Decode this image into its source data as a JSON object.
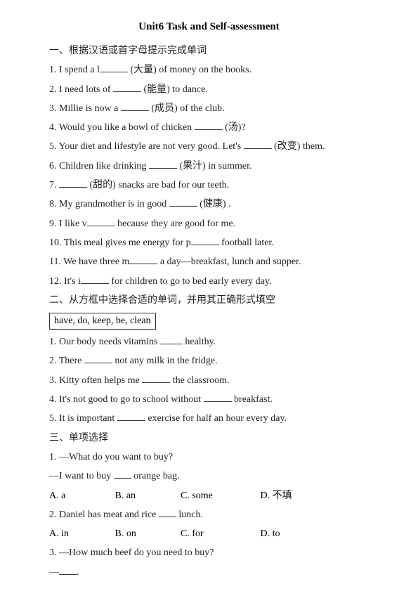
{
  "title": "Unit6 Task and Self-assessment",
  "section1_heading": "一、根据汉语或首字母提示完成单词",
  "s1": {
    "q1a": "1. I spend a l",
    "q1b": " (大量) of money on the books.",
    "q2a": "2. I need lots of ",
    "q2b": " (能量) to dance.",
    "q3a": "3. Millie is now a ",
    "q3b": " (成员) of the club.",
    "q4a": "4. Would you like a bowl of chicken ",
    "q4b": " (汤)?",
    "q5a": "5. Your diet and lifestyle are not very good. Let's ",
    "q5b": " (改变) them.",
    "q6a": "6. Children like drinking ",
    "q6b": " (果汁) in summer.",
    "q7a": "7. ",
    "q7b": " (甜的) snacks are bad for our teeth.",
    "q8a": "8. My grandmother is in good ",
    "q8b": " (健康) .",
    "q9a": "9. I like v",
    "q9b": " because they are good for me.",
    "q10a": "10. This meal gives me energy for p",
    "q10b": " football later.",
    "q11a": "11. We have three m",
    "q11b": " a day—breakfast, lunch and supper.",
    "q12a": "12. It's i",
    "q12b": " for children to go to bed early every day."
  },
  "section2_heading": "二、从方框中选择合适的单词，并用其正确形式填空",
  "wordbox": "have, do, keep, be, clean",
  "s2": {
    "q1a": "1. Our body needs vitamins ",
    "q1b": " healthy.",
    "q2a": "2. There ",
    "q2b": " not any milk in the fridge.",
    "q3a": "3. Kitty often helps me ",
    "q3b": " the classroom.",
    "q4a": "4. It's not good to go to school without ",
    "q4b": " breakfast.",
    "q5a": "5. It is important ",
    "q5b": " exercise for half an hour every day."
  },
  "section3_heading": "三、单项选择",
  "s3": {
    "q1_line1": "1. —What do you want to buy?",
    "q1_line2a": "—I want to buy ",
    "q1_line2b": " orange bag.",
    "q1_A": "A. a",
    "q1_B": "B. an",
    "q1_C": "C. some",
    "q1_D": "D. 不填",
    "q2a": "2. Daniel has meat and rice ",
    "q2b": " lunch.",
    "q2_A": "A. in",
    "q2_B": "B. on",
    "q2_C": "C. for",
    "q2_D": "D. to",
    "q3_line1": "3. —How much beef do you need to buy?",
    "q3_line2a": "—",
    "q3_line2b": "."
  }
}
